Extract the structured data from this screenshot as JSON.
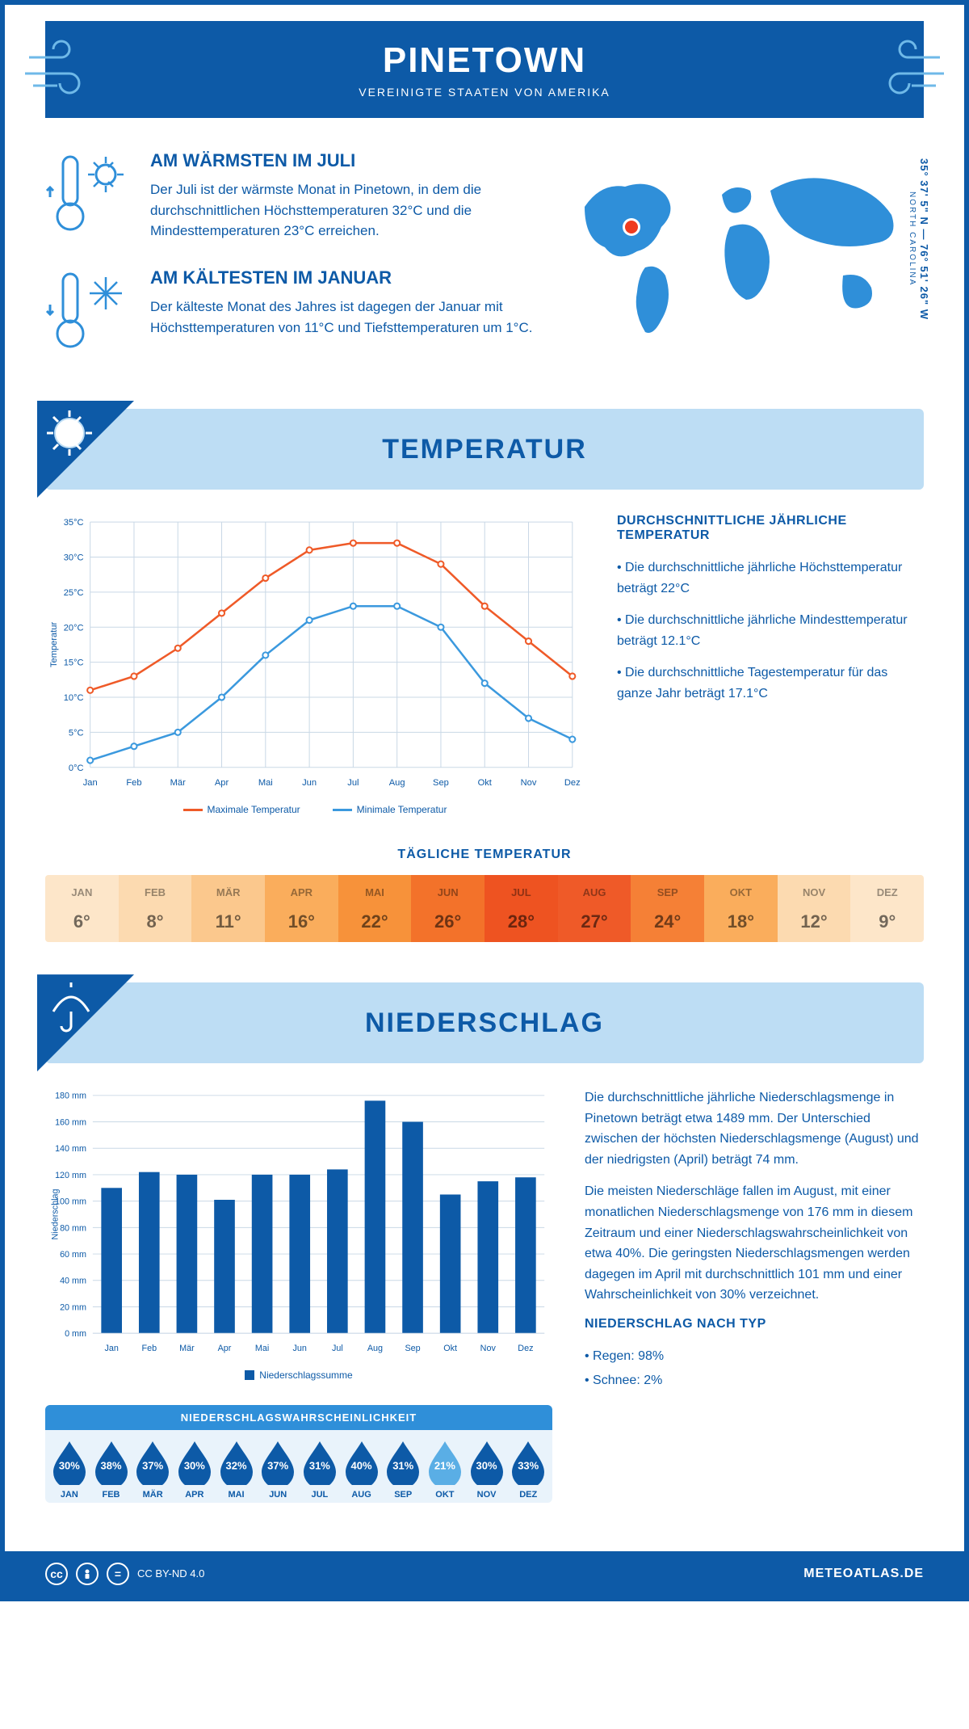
{
  "header": {
    "title": "PINETOWN",
    "subtitle": "VEREINIGTE STAATEN VON AMERIKA"
  },
  "coords": {
    "lat": "35° 37' 5\" N",
    "lon": "76° 51' 26\" W",
    "state": "NORTH CAROLINA"
  },
  "warmest": {
    "title": "AM WÄRMSTEN IM JULI",
    "text": "Der Juli ist der wärmste Monat in Pinetown, in dem die durchschnittlichen Höchsttemperaturen 32°C und die Mindesttemperaturen 23°C erreichen."
  },
  "coldest": {
    "title": "AM KÄLTESTEN IM JANUAR",
    "text": "Der kälteste Monat des Jahres ist dagegen der Januar mit Höchsttemperaturen von 11°C und Tiefsttemperaturen um 1°C."
  },
  "section_temp": {
    "title": "TEMPERATUR"
  },
  "section_precip": {
    "title": "NIEDERSCHLAG"
  },
  "temp_chart": {
    "type": "line",
    "months": [
      "Jan",
      "Feb",
      "Mär",
      "Apr",
      "Mai",
      "Jun",
      "Jul",
      "Aug",
      "Sep",
      "Okt",
      "Nov",
      "Dez"
    ],
    "max": [
      11,
      13,
      17,
      22,
      27,
      31,
      32,
      32,
      29,
      23,
      18,
      13
    ],
    "min": [
      1,
      3,
      5,
      10,
      16,
      21,
      23,
      23,
      20,
      12,
      7,
      4
    ],
    "ylim": [
      0,
      35
    ],
    "ytick_step": 5,
    "y_unit": "°C",
    "y_label": "Temperatur",
    "color_max": "#ef5a28",
    "color_min": "#3b99de",
    "grid_color": "#c9d8e6",
    "legend_max": "Maximale Temperatur",
    "legend_min": "Minimale Temperatur"
  },
  "temp_text": {
    "heading": "DURCHSCHNITTLICHE JÄHRLICHE TEMPERATUR",
    "b1": "• Die durchschnittliche jährliche Höchsttemperatur beträgt 22°C",
    "b2": "• Die durchschnittliche jährliche Mindesttemperatur beträgt 12.1°C",
    "b3": "• Die durchschnittliche Tagestemperatur für das ganze Jahr beträgt 17.1°C"
  },
  "daily_temp": {
    "title": "TÄGLICHE TEMPERATUR",
    "months": [
      "JAN",
      "FEB",
      "MÄR",
      "APR",
      "MAI",
      "JUN",
      "JUL",
      "AUG",
      "SEP",
      "OKT",
      "NOV",
      "DEZ"
    ],
    "values": [
      "6°",
      "8°",
      "11°",
      "16°",
      "22°",
      "26°",
      "28°",
      "27°",
      "24°",
      "18°",
      "12°",
      "9°"
    ],
    "colors": [
      "#fde6c9",
      "#fcdab0",
      "#fbc88d",
      "#faad5c",
      "#f7923a",
      "#f3722a",
      "#ee5321",
      "#ef5a28",
      "#f58036",
      "#faad5c",
      "#fcdab0",
      "#fde6c9"
    ]
  },
  "precip_chart": {
    "type": "bar",
    "months": [
      "Jan",
      "Feb",
      "Mär",
      "Apr",
      "Mai",
      "Jun",
      "Jul",
      "Aug",
      "Sep",
      "Okt",
      "Nov",
      "Dez"
    ],
    "values": [
      110,
      122,
      120,
      101,
      120,
      120,
      124,
      176,
      160,
      105,
      115,
      118
    ],
    "ylim": [
      0,
      180
    ],
    "ytick_step": 20,
    "y_unit": " mm",
    "y_label": "Niederschlag",
    "bar_color": "#0d5aa7",
    "grid_color": "#c9d8e6",
    "bar_width": 0.55,
    "legend": "Niederschlagssumme"
  },
  "precip_text": {
    "p1": "Die durchschnittliche jährliche Niederschlagsmenge in Pinetown beträgt etwa 1489 mm. Der Unterschied zwischen der höchsten Niederschlagsmenge (August) und der niedrigsten (April) beträgt 74 mm.",
    "p2": "Die meisten Niederschläge fallen im August, mit einer monatlichen Niederschlagsmenge von 176 mm in diesem Zeitraum und einer Niederschlagswahrscheinlichkeit von etwa 40%. Die geringsten Niederschlagsmengen werden dagegen im April mit durchschnittlich 101 mm und einer Wahrscheinlichkeit von 30% verzeichnet.",
    "type_heading": "NIEDERSCHLAG NACH TYP",
    "type_rain": "• Regen: 98%",
    "type_snow": "• Schnee: 2%"
  },
  "precip_prob": {
    "title": "NIEDERSCHLAGSWAHRSCHEINLICHKEIT",
    "months": [
      "JAN",
      "FEB",
      "MÄR",
      "APR",
      "MAI",
      "JUN",
      "JUL",
      "AUG",
      "SEP",
      "OKT",
      "NOV",
      "DEZ"
    ],
    "values": [
      "30%",
      "38%",
      "37%",
      "30%",
      "32%",
      "37%",
      "31%",
      "40%",
      "31%",
      "21%",
      "30%",
      "33%"
    ],
    "colors": [
      "#0d5aa7",
      "#0d5aa7",
      "#0d5aa7",
      "#0d5aa7",
      "#0d5aa7",
      "#0d5aa7",
      "#0d5aa7",
      "#0d5aa7",
      "#0d5aa7",
      "#5aaee5",
      "#0d5aa7",
      "#0d5aa7"
    ]
  },
  "footer": {
    "license": "CC BY-ND 4.0",
    "site": "METEOATLAS.DE"
  }
}
